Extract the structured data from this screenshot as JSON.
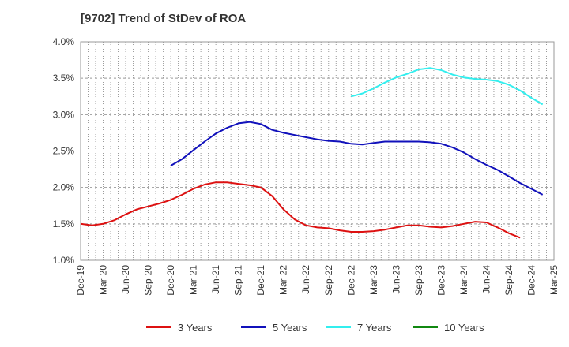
{
  "title": "[9702]  Trend of StDev of ROA",
  "chart_data": {
    "type": "line",
    "title": "[9702]  Trend of StDev of ROA",
    "xlabel": "",
    "ylabel": "",
    "y_ticks": [
      "1.0%",
      "1.5%",
      "2.0%",
      "2.5%",
      "3.0%",
      "3.5%",
      "4.0%"
    ],
    "ylim": [
      1.0,
      4.0
    ],
    "x_ticks": [
      "Dec-19",
      "Mar-20",
      "Jun-20",
      "Sep-20",
      "Dec-20",
      "Mar-21",
      "Jun-21",
      "Sep-21",
      "Dec-21",
      "Mar-22",
      "Jun-22",
      "Sep-22",
      "Dec-22",
      "Mar-23",
      "Jun-23",
      "Sep-23",
      "Dec-23",
      "Mar-24",
      "Jun-24",
      "Sep-24",
      "Dec-24",
      "Mar-25"
    ],
    "grid": true,
    "legend_position": "bottom",
    "series": [
      {
        "name": "3 Years",
        "color": "#dd1111",
        "start_index": 0,
        "values": [
          1.5,
          1.48,
          1.5,
          1.55,
          1.63,
          1.7,
          1.74,
          1.78,
          1.83,
          1.9,
          1.98,
          2.04,
          2.07,
          2.07,
          2.05,
          2.03,
          2.0,
          1.88,
          1.7,
          1.56,
          1.48,
          1.45,
          1.44,
          1.41,
          1.39,
          1.39,
          1.4,
          1.42,
          1.45,
          1.48,
          1.48,
          1.46,
          1.45,
          1.47,
          1.5,
          1.53,
          1.52,
          1.45,
          1.37,
          1.31
        ]
      },
      {
        "name": "5 Years",
        "color": "#1111bb",
        "start_index": 8,
        "values": [
          2.3,
          2.39,
          2.51,
          2.63,
          2.74,
          2.82,
          2.88,
          2.9,
          2.87,
          2.79,
          2.75,
          2.72,
          2.69,
          2.66,
          2.64,
          2.63,
          2.6,
          2.59,
          2.61,
          2.63,
          2.63,
          2.63,
          2.63,
          2.62,
          2.6,
          2.55,
          2.48,
          2.39,
          2.31,
          2.24,
          2.15,
          2.06,
          1.98,
          1.9
        ]
      },
      {
        "name": "7 Years",
        "color": "#33eeee",
        "start_index": 24,
        "values": [
          3.25,
          3.29,
          3.36,
          3.44,
          3.51,
          3.56,
          3.62,
          3.64,
          3.61,
          3.55,
          3.51,
          3.49,
          3.48,
          3.46,
          3.41,
          3.33,
          3.23,
          3.14
        ]
      },
      {
        "name": "10 Years",
        "color": "#118811",
        "start_index": 0,
        "values": []
      }
    ]
  }
}
